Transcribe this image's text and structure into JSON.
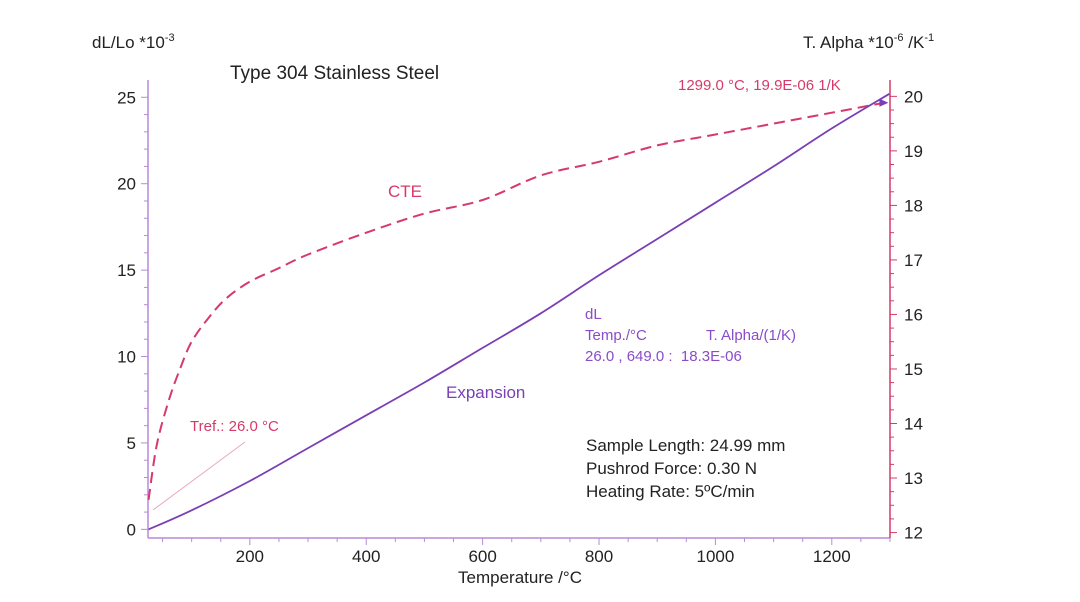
{
  "chart_data": {
    "type": "line",
    "title": "Type 304 Stainless Steel",
    "xlabel": "Temperature /°C",
    "ylabel_left": {
      "base": "dL/Lo *10",
      "exp": "-3"
    },
    "ylabel_right": {
      "base": "T. Alpha *10",
      "exp": "-6",
      "unit": " /K",
      "unit_exp": "-1"
    },
    "xlim": [
      25,
      1300
    ],
    "ylim_left": [
      -0.5,
      26
    ],
    "ylim_right": [
      11.9,
      20.3
    ],
    "x_ticks": [
      200,
      400,
      600,
      800,
      1000,
      1200
    ],
    "y_left_ticks": [
      0,
      5,
      10,
      15,
      20,
      25
    ],
    "y_right_ticks": [
      12,
      13,
      14,
      15,
      16,
      17,
      18,
      19,
      20
    ],
    "colors": {
      "expansion": "#7a3fb5",
      "cte": "#d63a6a",
      "axis_left": "#b98ad8",
      "axis_right": "#d63a6a"
    },
    "series": [
      {
        "name": "Expansion",
        "axis": "left",
        "style": "solid",
        "x": [
          26,
          100,
          200,
          300,
          400,
          500,
          600,
          700,
          800,
          900,
          1000,
          1100,
          1200,
          1299
        ],
        "y": [
          0.0,
          1.1,
          2.8,
          4.7,
          6.6,
          8.5,
          10.5,
          12.5,
          14.7,
          16.8,
          18.9,
          21.0,
          23.2,
          25.2
        ]
      },
      {
        "name": "CTE",
        "axis": "right",
        "style": "dashed",
        "x": [
          26,
          40,
          60,
          80,
          100,
          130,
          160,
          200,
          250,
          300,
          400,
          500,
          600,
          700,
          800,
          900,
          1000,
          1100,
          1200,
          1299
        ],
        "y": [
          12.6,
          13.6,
          14.4,
          15.0,
          15.5,
          15.95,
          16.3,
          16.6,
          16.85,
          17.1,
          17.5,
          17.85,
          18.1,
          18.55,
          18.8,
          19.1,
          19.3,
          19.5,
          19.7,
          19.9
        ]
      }
    ],
    "annotations": {
      "cte_label": "CTE",
      "expansion_label": "Expansion",
      "endpoint": "1299.0 °C, 19.9E-06 1/K",
      "tref": "Tref.: 26.0 °C",
      "readout_title": "dL",
      "readout_col1": "Temp./°C",
      "readout_col2": "T. Alpha/(1/K)",
      "readout_values": "26.0 , 649.0 :  18.3E-06",
      "sample_length": "Sample Length: 24.99 mm",
      "pushrod_force": "Pushrod Force: 0.30 N",
      "heating_rate": "Heating Rate: 5ºC/min"
    }
  }
}
